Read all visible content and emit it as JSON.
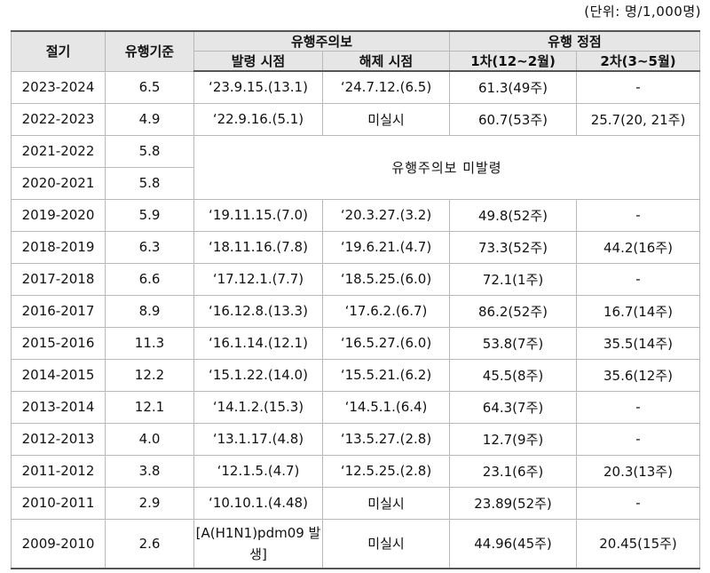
{
  "unit_label": "(단위: 명/1,000명)",
  "headers": {
    "season": "절기",
    "baseline": "유행기준",
    "advisory": "유행주의보",
    "issued": "발령 시점",
    "lifted": "해제 시점",
    "peak": "유행 정점",
    "peak1": "1차(12~2월)",
    "peak2": "2차(3~5월)"
  },
  "no_advisory_note": "유행주의보 미발령",
  "rows": [
    {
      "season": "2023-2024",
      "baseline": "6.5",
      "issued": "‘23.9.15.(13.1)",
      "lifted": "‘24.7.12.(6.5)",
      "peak1": "61.3(49주)",
      "peak2": "-"
    },
    {
      "season": "2022-2023",
      "baseline": "4.9",
      "issued": "‘22.9.16.(5.1)",
      "lifted": "미실시",
      "peak1": "60.7(53주)",
      "peak2": "25.7(20, 21주)"
    },
    {
      "season": "2021-2022",
      "baseline": "5.8"
    },
    {
      "season": "2020-2021",
      "baseline": "5.8"
    },
    {
      "season": "2019-2020",
      "baseline": "5.9",
      "issued": "‘19.11.15.(7.0)",
      "lifted": "‘20.3.27.(3.2)",
      "peak1": "49.8(52주)",
      "peak2": "-"
    },
    {
      "season": "2018-2019",
      "baseline": "6.3",
      "issued": "‘18.11.16.(7.8)",
      "lifted": "‘19.6.21.(4.7)",
      "peak1": "73.3(52주)",
      "peak2": "44.2(16주)"
    },
    {
      "season": "2017-2018",
      "baseline": "6.6",
      "issued": "‘17.12.1.(7.7)",
      "lifted": "‘18.5.25.(6.0)",
      "peak1": "72.1(1주)",
      "peak2": "-"
    },
    {
      "season": "2016-2017",
      "baseline": "8.9",
      "issued": "‘16.12.8.(13.3)",
      "lifted": "‘17.6.2.(6.7)",
      "peak1": "86.2(52주)",
      "peak2": "16.7(14주)"
    },
    {
      "season": "2015-2016",
      "baseline": "11.3",
      "issued": "‘16.1.14.(12.1)",
      "lifted": "‘16.5.27.(6.0)",
      "peak1": "53.8(7주)",
      "peak2": "35.5(14주)"
    },
    {
      "season": "2014-2015",
      "baseline": "12.2",
      "issued": "‘15.1.22.(14.0)",
      "lifted": "‘15.5.21.(6.2)",
      "peak1": "45.5(8주)",
      "peak2": "35.6(12주)"
    },
    {
      "season": "2013-2014",
      "baseline": "12.1",
      "issued": "‘14.1.2.(15.3)",
      "lifted": "‘14.5.1.(6.4)",
      "peak1": "64.3(7주)",
      "peak2": "-"
    },
    {
      "season": "2012-2013",
      "baseline": "4.0",
      "issued": "‘13.1.17.(4.8)",
      "lifted": "‘13.5.27.(2.8)",
      "peak1": "12.7(9주)",
      "peak2": "-"
    },
    {
      "season": "2011-2012",
      "baseline": "3.8",
      "issued": "‘12.1.5.(4.7)",
      "lifted": "‘12.5.25.(2.8)",
      "peak1": "23.1(6주)",
      "peak2": "20.3(13주)"
    },
    {
      "season": "2010-2011",
      "baseline": "2.9",
      "issued": "‘10.10.1.(4.48)",
      "lifted": "미실시",
      "peak1": "23.89(52주)",
      "peak2": "-"
    },
    {
      "season": "2009-2010",
      "baseline": "2.6",
      "issued": "[A(H1N1)pdm09 발생]",
      "lifted": "미실시",
      "peak1": "44.96(45주)",
      "peak2": "20.45(15주)"
    }
  ]
}
